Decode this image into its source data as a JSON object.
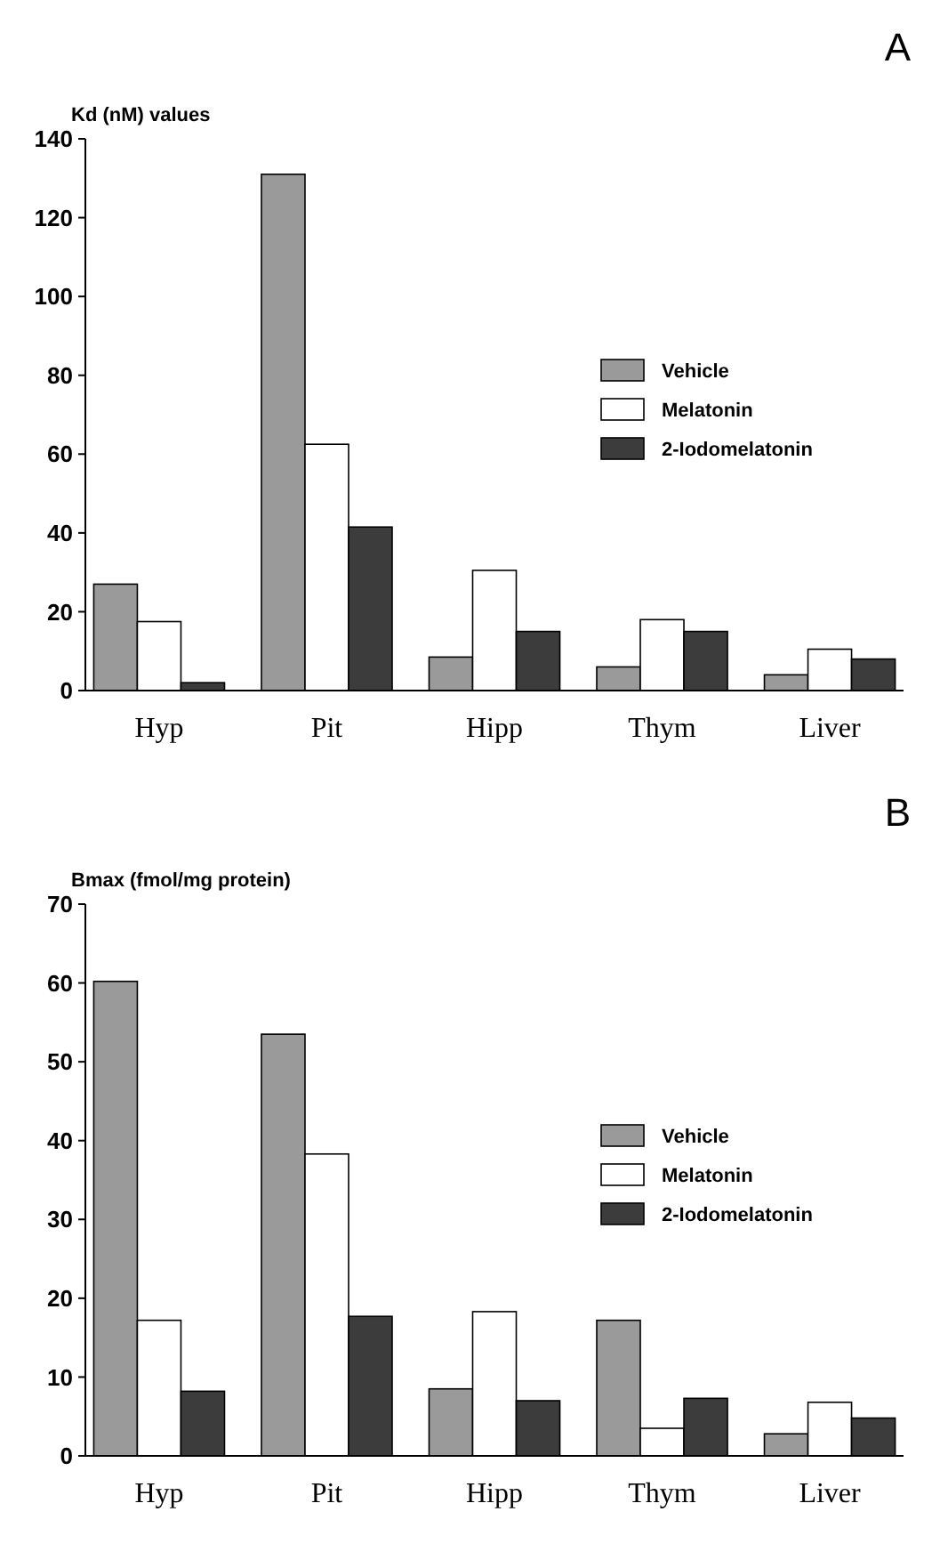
{
  "chart_data": [
    {
      "type": "bar",
      "title": "A",
      "ylabel": "Kd (nM) values",
      "categories": [
        "Hyp",
        "Pit",
        "Hipp",
        "Thym",
        "Liver"
      ],
      "ylim": [
        0,
        140
      ],
      "yticks": [
        0,
        20,
        40,
        60,
        80,
        100,
        120,
        140
      ],
      "legend": "right",
      "grid": false,
      "series": [
        {
          "name": "Vehicle",
          "color": "#9a9a9a",
          "values": [
            27,
            131,
            8.5,
            6,
            4
          ]
        },
        {
          "name": "Melatonin",
          "color": "#ffffff",
          "values": [
            17.5,
            62.5,
            30.5,
            18,
            10.5
          ]
        },
        {
          "name": "2-Iodomelatonin",
          "color": "#3c3c3c",
          "values": [
            2,
            41.5,
            15,
            15,
            8
          ]
        }
      ]
    },
    {
      "type": "bar",
      "title": "B",
      "ylabel": "Bmax (fmol/mg protein)",
      "categories": [
        "Hyp",
        "Pit",
        "Hipp",
        "Thym",
        "Liver"
      ],
      "ylim": [
        0,
        70
      ],
      "yticks": [
        0,
        10,
        20,
        30,
        40,
        50,
        60,
        70
      ],
      "legend": "right",
      "grid": false,
      "series": [
        {
          "name": "Vehicle",
          "color": "#9a9a9a",
          "values": [
            60.2,
            53.5,
            8.5,
            17.2,
            2.8
          ]
        },
        {
          "name": "Melatonin",
          "color": "#ffffff",
          "values": [
            17.2,
            38.3,
            18.3,
            3.5,
            6.8
          ]
        },
        {
          "name": "2-Iodomelatonin",
          "color": "#3c3c3c",
          "values": [
            8.2,
            17.7,
            7,
            7.3,
            4.8
          ]
        }
      ]
    }
  ]
}
